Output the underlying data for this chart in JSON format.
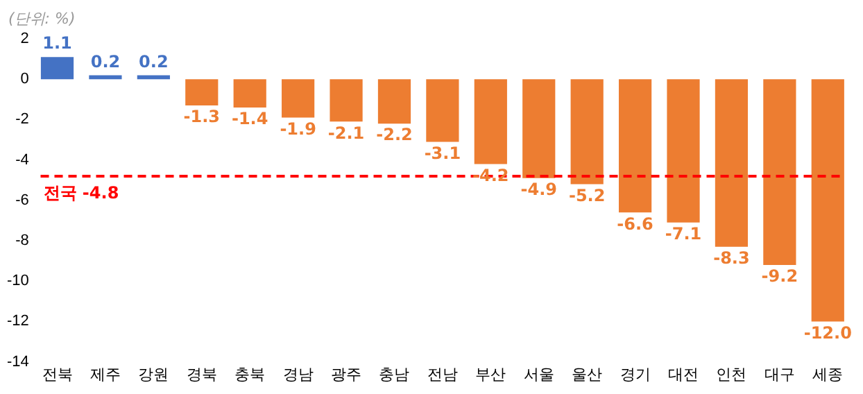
{
  "chart_data": {
    "type": "bar",
    "categories": [
      "전북",
      "제주",
      "강원",
      "경북",
      "충북",
      "경남",
      "광주",
      "충남",
      "전남",
      "부산",
      "서울",
      "울산",
      "경기",
      "대전",
      "인천",
      "대구",
      "세종"
    ],
    "values": [
      1.1,
      0.2,
      0.2,
      -1.3,
      -1.4,
      -1.9,
      -2.1,
      -2.2,
      -3.1,
      -4.2,
      -4.9,
      -5.2,
      -6.6,
      -7.1,
      -8.3,
      -9.2,
      -12.0
    ],
    "value_labels": [
      "1.1",
      "0.2",
      "0.2",
      "-1.3",
      "-1.4",
      "-1.9",
      "-2.1",
      "-2.2",
      "-3.1",
      "-4.2",
      "-4.9",
      "-5.2",
      "-6.6",
      "-7.1",
      "-8.3",
      "-9.2",
      "-12.0"
    ],
    "colors": [
      "#4472c4",
      "#4472c4",
      "#4472c4",
      "#ed7d31",
      "#ed7d31",
      "#ed7d31",
      "#ed7d31",
      "#ed7d31",
      "#ed7d31",
      "#ed7d31",
      "#ed7d31",
      "#ed7d31",
      "#ed7d31",
      "#ed7d31",
      "#ed7d31",
      "#ed7d31",
      "#ed7d31"
    ],
    "ylim": [
      -14,
      2
    ],
    "yticks": [
      2,
      0,
      -2,
      -4,
      -6,
      -8,
      -10,
      -12,
      -14
    ],
    "grid": false,
    "legend": false,
    "ref_lines": [
      {
        "axis": "y",
        "value": -4.8,
        "label": "전국 -4.8",
        "color": "#ff0000",
        "line_style": "dashed"
      }
    ],
    "annotations": [
      "(단위: %)"
    ]
  }
}
